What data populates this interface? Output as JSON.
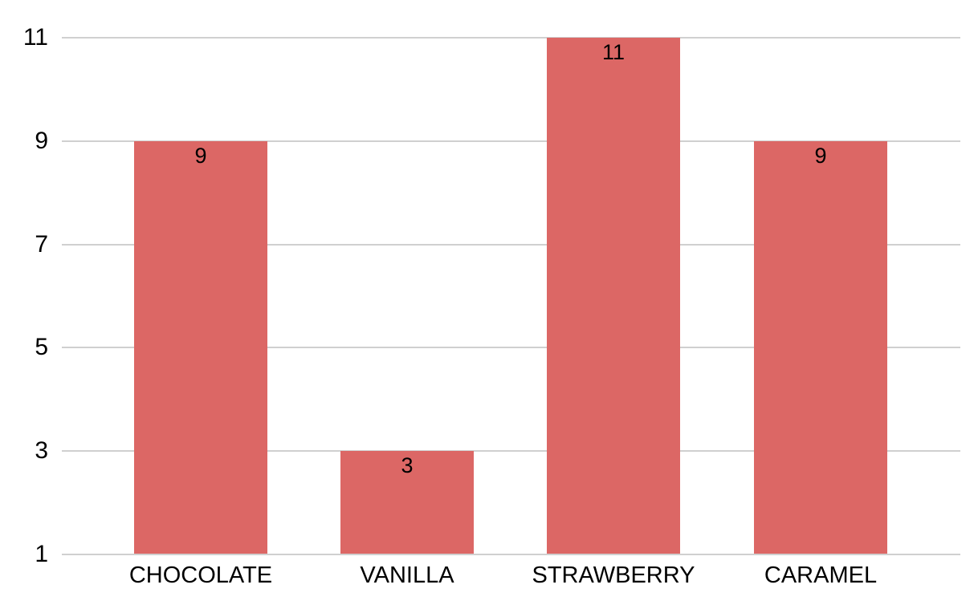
{
  "chart_data": {
    "type": "bar",
    "categories": [
      "CHOCOLATE",
      "VANILLA",
      "STRAWBERRY",
      "CARAMEL"
    ],
    "values": [
      9,
      3,
      11,
      9
    ],
    "data_labels": [
      "9",
      "3",
      "11",
      "9"
    ],
    "title": "",
    "xlabel": "",
    "ylabel": "",
    "ylim": [
      1,
      11
    ],
    "yticks": [
      1,
      3,
      5,
      7,
      9,
      11
    ],
    "ytick_labels": [
      "1",
      "3",
      "5",
      "7",
      "9",
      "11"
    ],
    "grid": true,
    "legend": "none",
    "colors": {
      "bar": "#DC6765",
      "gridline": "#D0D0D0",
      "baseline": "#D0D0D0",
      "text": "#000000",
      "background": "#FFFFFF"
    }
  }
}
